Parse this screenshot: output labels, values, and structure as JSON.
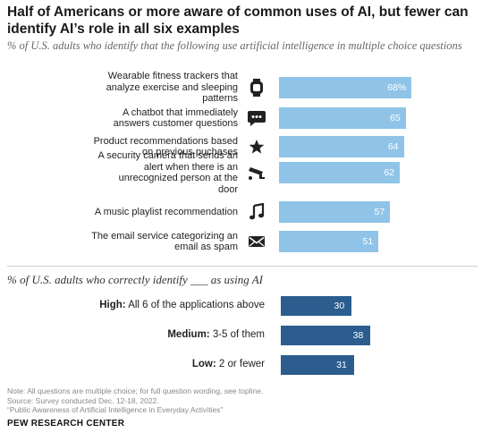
{
  "title": "Half of Americans or more aware of common uses of AI, but fewer can identify AI’s role in all six examples",
  "subtitle": "% of U.S. adults who identify that the following use artificial intelligence in multiple choice questions",
  "chart_data": [
    {
      "type": "bar",
      "orientation": "horizontal",
      "categories": [
        "Wearable fitness trackers that analyze exercise and sleeping patterns",
        "A chatbot that immediately answers customer questions",
        "Product recommendations based on previous puchases",
        "A security camera that sends an alert when there is an unrecognized person at the door",
        "A music playlist recommendation",
        "The email service categorizing an email as spam"
      ],
      "values": [
        68,
        65,
        64,
        62,
        57,
        51
      ],
      "value_labels": [
        "68%",
        "65",
        "64",
        "62",
        "57",
        "51"
      ],
      "icons": [
        "watch-icon",
        "chat-bubble-icon",
        "star-icon",
        "security-camera-icon",
        "music-note-icon",
        "envelope-icon"
      ],
      "xlim": [
        0,
        100
      ],
      "color": "#8fc4e8"
    },
    {
      "type": "bar",
      "orientation": "horizontal",
      "title": "% of U.S. adults who correctly identify ___ as using AI",
      "categories": [
        {
          "bold": "High:",
          "rest": " All 6 of the applications above"
        },
        {
          "bold": "Medium:",
          "rest": " 3-5 of them"
        },
        {
          "bold": "Low:",
          "rest": " 2 or fewer"
        }
      ],
      "values": [
        30,
        38,
        31
      ],
      "value_labels": [
        "30",
        "38",
        "31"
      ],
      "xlim": [
        0,
        100
      ],
      "color": "#2b5d8f"
    }
  ],
  "notes": [
    "Note: All questions are multiple choice; for full question wording, see topline.",
    "Source: Survey conducted Dec. 12-18, 2022.",
    "“Public Awareness of Artificial Intelligence in Everyday Activities”"
  ],
  "source_label": "PEW RESEARCH CENTER"
}
